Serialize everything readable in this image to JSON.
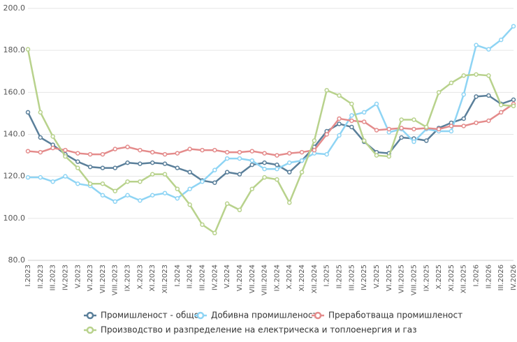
{
  "chart_data": {
    "type": "line",
    "categories": [
      "I.2023",
      "II.2023",
      "III.2023",
      "IV.2023",
      "V.2023",
      "VI.2023",
      "VII.2023",
      "VIII.2023",
      "IX.2023",
      "X.2023",
      "XI.2023",
      "XII.2023",
      "I.2024",
      "II.2024",
      "III.2024",
      "IV.2024",
      "V.2024",
      "VI.2024",
      "VII.2024",
      "VIII.2024",
      "IX.2024",
      "X.2024",
      "XI.2024",
      "XII.2024",
      "I.2025",
      "II.2025",
      "III.2025",
      "IV.2025",
      "V.2025",
      "VI.2025",
      "VII.2025",
      "VIII.2025",
      "IX.2025",
      "X.2025",
      "XI.2025",
      "XII.2025",
      "I.2026",
      "II.2026",
      "III.2026",
      "IV.2026"
    ],
    "series": [
      {
        "name": "Промишленост - общо",
        "color": "#5a7f9a",
        "values": [
          150.5,
          138.5,
          135,
          130.5,
          127,
          124.5,
          124,
          124,
          126.5,
          126,
          126.5,
          126,
          124,
          122,
          118,
          117,
          122,
          121,
          125.5,
          126.5,
          125.5,
          122,
          127.5,
          134,
          141.5,
          145,
          143.5,
          136.5,
          131.5,
          131,
          138.5,
          138,
          137,
          143,
          145.5,
          147.5,
          158,
          158.5,
          154.5,
          156.5
        ]
      },
      {
        "name": "Добивна промишленост",
        "color": "#8ed4f4",
        "values": [
          119.5,
          119.5,
          117.5,
          120,
          116.5,
          115.5,
          111,
          108,
          111,
          108.5,
          111,
          112,
          109.5,
          114,
          117.5,
          123,
          128.5,
          128.5,
          127.5,
          123.5,
          123.5,
          126.5,
          127.5,
          131,
          130.5,
          139.5,
          149,
          150.5,
          154.5,
          141,
          142.5,
          136.5,
          142.5,
          141.5,
          141.5,
          159,
          182.5,
          180.5,
          185,
          191.5
        ]
      },
      {
        "name": "Преработваща промишленост",
        "color": "#e48b8b",
        "values": [
          132,
          131.5,
          133.5,
          132.5,
          131,
          130.5,
          130.5,
          133,
          134,
          132.5,
          131.5,
          130.5,
          131,
          133,
          132.5,
          132.5,
          131.5,
          131.5,
          132,
          131,
          130,
          131,
          131.5,
          132.5,
          140,
          147.5,
          146.5,
          146,
          142,
          142.5,
          143,
          142.5,
          143,
          142.5,
          144,
          144,
          145.5,
          146.5,
          150.5,
          154.5
        ]
      },
      {
        "name": "Производство и разпределение на електрическа и топлоенергия и газ",
        "color": "#b8d28c",
        "values": [
          180.5,
          150.5,
          139,
          129.5,
          124,
          116.5,
          116.5,
          113,
          117.5,
          117.5,
          121,
          121,
          114,
          106.5,
          97,
          93,
          107,
          104,
          114,
          119.5,
          118.5,
          107.5,
          122,
          137,
          161,
          158.5,
          154.5,
          137,
          130,
          129.5,
          147,
          147,
          143.5,
          160,
          164.5,
          168,
          168.5,
          168,
          154,
          153.5
        ]
      }
    ],
    "ylim": [
      80,
      200
    ],
    "yticks": [
      {
        "value": 80,
        "label": "80.0"
      },
      {
        "value": 100,
        "label": "100.0"
      },
      {
        "value": 120,
        "label": "120.0"
      },
      {
        "value": 140,
        "label": "140.0"
      },
      {
        "value": 160,
        "label": "160.0"
      },
      {
        "value": 180,
        "label": "180.0"
      },
      {
        "value": 200,
        "label": "200.0"
      }
    ],
    "grid": true
  }
}
